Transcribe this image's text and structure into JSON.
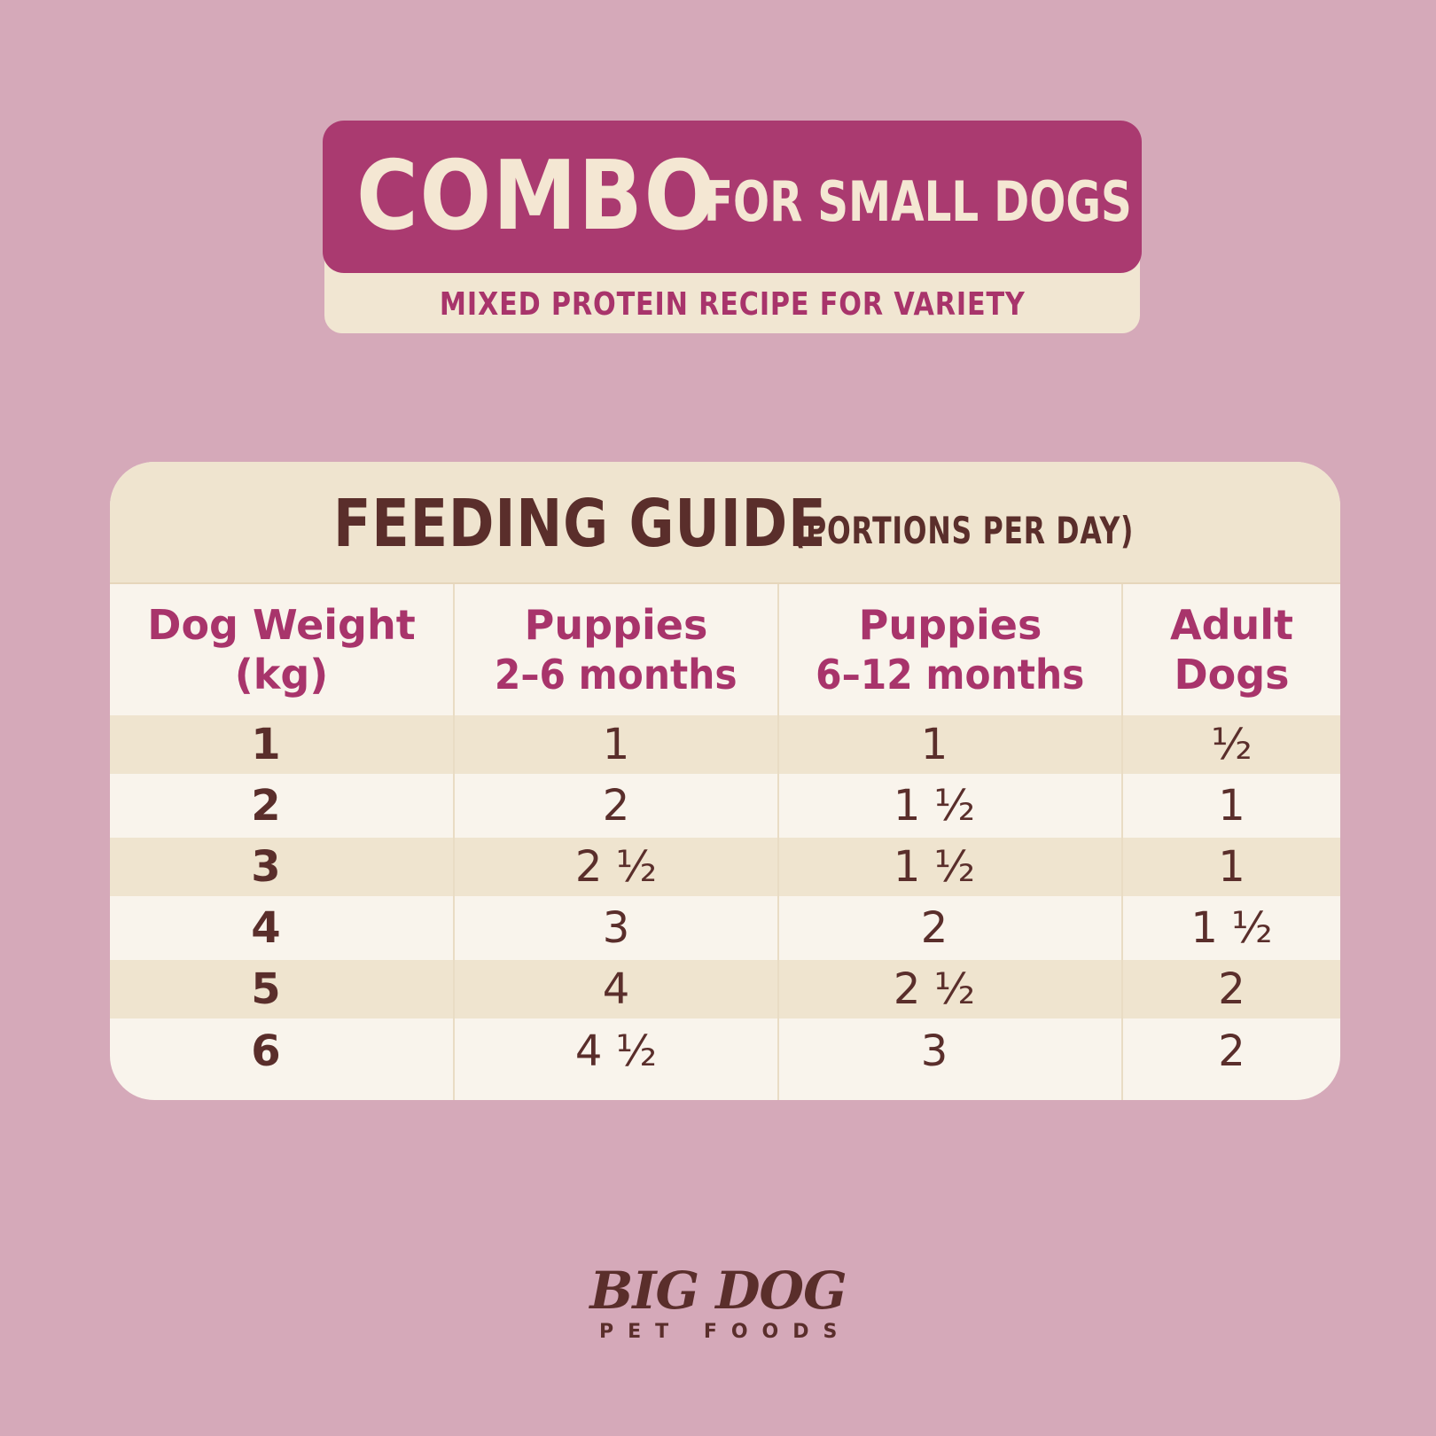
{
  "header": {
    "title_main": "COMBO",
    "title_sub": "FOR SMALL DOGS",
    "subtitle": "MIXED PROTEIN RECIPE FOR VARIETY"
  },
  "guide": {
    "title": "FEEDING GUIDE",
    "title_suffix": "(PORTIONS PER DAY)",
    "columns": [
      {
        "line1": "Dog Weight",
        "line2": "(kg)"
      },
      {
        "line1": "Puppies",
        "line2": "2–6 months"
      },
      {
        "line1": "Puppies",
        "line2": "6–12 months"
      },
      {
        "line1": "Adult",
        "line2": "Dogs"
      }
    ],
    "rows": [
      [
        "1",
        "1",
        "1",
        "½"
      ],
      [
        "2",
        "2",
        "1 ½",
        "1"
      ],
      [
        "3",
        "2 ½",
        "1 ½",
        "1"
      ],
      [
        "4",
        "3",
        "2",
        "1 ½"
      ],
      [
        "5",
        "4",
        "2 ½",
        "2"
      ],
      [
        "6",
        "4 ½",
        "3",
        "2"
      ]
    ]
  },
  "brand": {
    "name": "BIG DOG",
    "tagline": "PET FOODS"
  },
  "colors": {
    "background": "#d5a9b9",
    "accent": "#aa3a70",
    "cream": "#f1e6d2",
    "text_dark": "#5a2e2b"
  }
}
